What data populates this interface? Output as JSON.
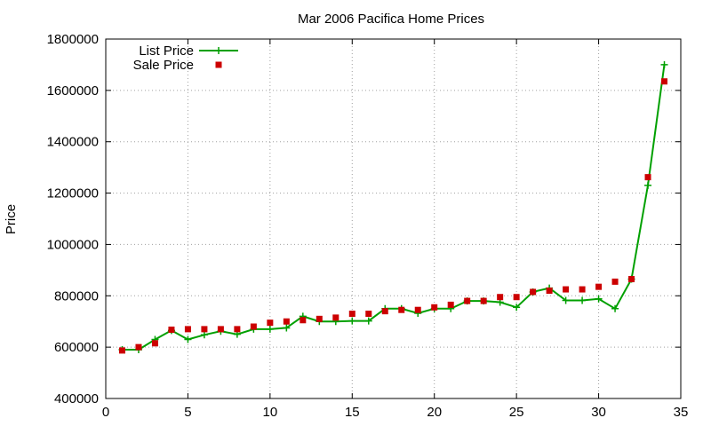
{
  "chart_data": {
    "type": "line",
    "title": "Mar 2006 Pacifica Home Prices",
    "xlabel": "",
    "ylabel": "Price",
    "xlim": [
      0,
      35
    ],
    "ylim": [
      400000,
      1800000
    ],
    "xticks": [
      0,
      5,
      10,
      15,
      20,
      25,
      30,
      35
    ],
    "yticks": [
      400000,
      600000,
      800000,
      1000000,
      1200000,
      1400000,
      1600000,
      1800000
    ],
    "xtick_labels": [
      "0",
      "5",
      "10",
      "15",
      "20",
      "25",
      "30",
      "35"
    ],
    "ytick_labels": [
      "400000",
      "600000",
      "800000",
      "1000000",
      "1200000",
      "1400000",
      "1600000",
      "1800000"
    ],
    "grid": true,
    "legend_position": "top-left",
    "series": [
      {
        "name": "List Price",
        "style": "line-with-plus-markers",
        "color": "#00a000",
        "x": [
          1,
          2,
          3,
          4,
          5,
          6,
          7,
          8,
          9,
          10,
          11,
          12,
          13,
          14,
          15,
          16,
          17,
          18,
          19,
          20,
          21,
          22,
          23,
          24,
          25,
          26,
          27,
          28,
          29,
          30,
          31,
          32,
          33,
          34
        ],
        "y": [
          590000,
          590000,
          630000,
          665000,
          630000,
          648000,
          662000,
          650000,
          670000,
          670000,
          675000,
          720000,
          700000,
          700000,
          702000,
          702000,
          750000,
          750000,
          732000,
          750000,
          750000,
          780000,
          780000,
          775000,
          755000,
          815000,
          830000,
          782000,
          782000,
          788000,
          750000,
          865000,
          1230000,
          1700000
        ]
      },
      {
        "name": "Sale Price",
        "style": "square-markers",
        "color": "#cc0000",
        "x": [
          1,
          2,
          3,
          4,
          5,
          6,
          7,
          8,
          9,
          10,
          11,
          12,
          13,
          14,
          15,
          16,
          17,
          18,
          19,
          20,
          21,
          22,
          23,
          24,
          25,
          26,
          27,
          28,
          29,
          30,
          31,
          32,
          33,
          34
        ],
        "y": [
          587000,
          600000,
          615000,
          668000,
          670000,
          670000,
          670000,
          670000,
          680000,
          695000,
          700000,
          705000,
          710000,
          715000,
          730000,
          730000,
          740000,
          745000,
          745000,
          755000,
          765000,
          780000,
          780000,
          795000,
          795000,
          815000,
          820000,
          825000,
          825000,
          835000,
          855000,
          865000,
          1262000,
          1635000
        ]
      }
    ]
  }
}
